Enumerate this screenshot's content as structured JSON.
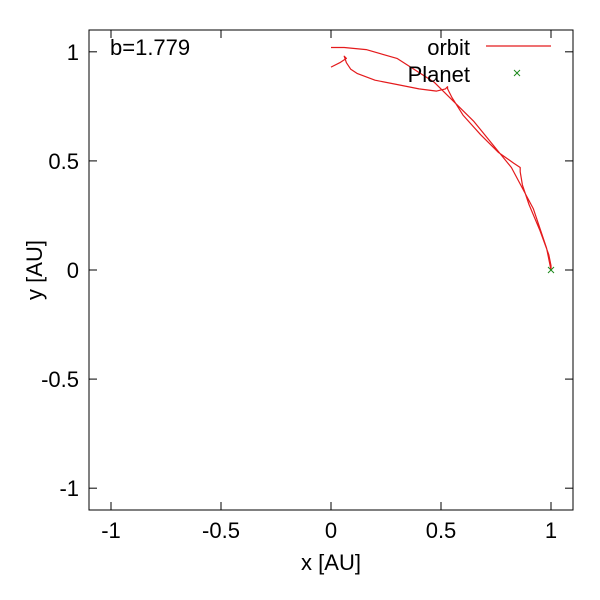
{
  "chart_data": {
    "type": "line",
    "annotation": "b=1.779",
    "xlabel": "x [AU]",
    "ylabel": "y [AU]",
    "xlim": [
      -1.1,
      1.1
    ],
    "ylim": [
      -1.1,
      1.1
    ],
    "xticks": [
      -1,
      -0.5,
      0,
      0.5,
      1
    ],
    "yticks": [
      -1,
      -0.5,
      0,
      0.5,
      1
    ],
    "xtick_labels": [
      "-1",
      "-0.5",
      "0",
      "0.5",
      "1"
    ],
    "ytick_labels": [
      "-1",
      "-0.5",
      "0",
      "0.5",
      "1"
    ],
    "grid": false,
    "legend_position": "top-right",
    "series": [
      {
        "name": "orbit",
        "kind": "line",
        "color": "#e41a1c",
        "x": [
          0.0,
          0.04,
          0.07,
          0.06,
          0.07,
          0.09,
          0.12,
          0.2,
          0.3,
          0.4,
          0.48,
          0.52,
          0.53,
          0.53,
          0.55,
          0.6,
          0.68,
          0.76,
          0.83,
          0.86,
          0.86,
          0.86,
          0.87,
          0.9,
          0.95,
          0.99,
          1.0,
          1.0,
          0.98,
          0.92,
          0.82,
          0.65,
          0.47,
          0.3,
          0.16,
          0.06,
          0.0
        ],
        "y": [
          0.93,
          0.95,
          0.97,
          0.98,
          0.95,
          0.92,
          0.9,
          0.87,
          0.85,
          0.83,
          0.82,
          0.83,
          0.84,
          0.83,
          0.79,
          0.71,
          0.62,
          0.54,
          0.49,
          0.47,
          0.46,
          0.45,
          0.39,
          0.3,
          0.18,
          0.07,
          0.02,
          0.0,
          0.1,
          0.28,
          0.47,
          0.68,
          0.86,
          0.97,
          1.01,
          1.02,
          1.02
        ]
      },
      {
        "name": "Planet",
        "kind": "points",
        "marker": "x",
        "color": "#1a8a1a",
        "x": [
          1.0
        ],
        "y": [
          0.0
        ]
      }
    ]
  }
}
